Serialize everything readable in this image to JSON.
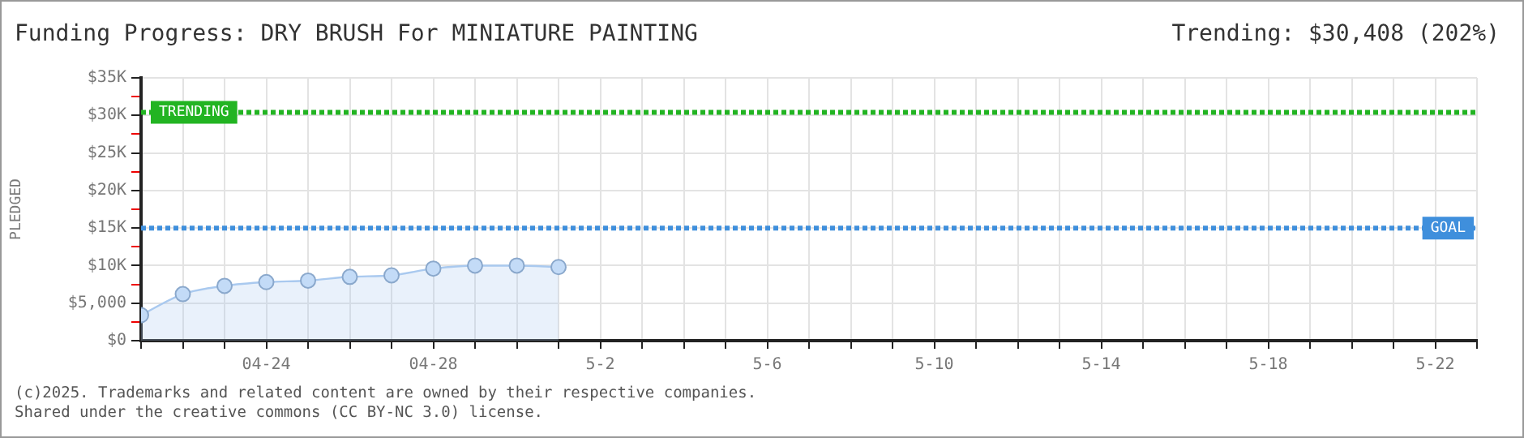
{
  "chart_data": {
    "type": "area",
    "title": "Funding Progress: DRY BRUSH For MINIATURE PAINTING",
    "subtitle": "Trending: $30,408 (202%)",
    "ylabel": "PLEDGED",
    "x": [
      "2025-04-21",
      "2025-04-22",
      "2025-04-23",
      "2025-04-24",
      "2025-04-25",
      "2025-04-26",
      "2025-04-27",
      "2025-04-28",
      "2025-04-29",
      "2025-04-30",
      "2025-05-01"
    ],
    "series": [
      {
        "color": "#a9c9ef",
        "values": [
          3400,
          6200,
          7300,
          7800,
          8000,
          8500,
          8700,
          9600,
          10000,
          10000,
          9800
        ]
      }
    ],
    "xlim": [
      "2025-04-21",
      "2025-05-23"
    ],
    "xticks": [
      {
        "value": "2025-04-21",
        "label": null
      },
      {
        "value": "2025-04-22",
        "label": null
      },
      {
        "value": "2025-04-23",
        "label": null
      },
      {
        "value": "2025-04-24",
        "label": "04-24"
      },
      {
        "value": "2025-04-25",
        "label": null
      },
      {
        "value": "2025-04-26",
        "label": null
      },
      {
        "value": "2025-04-27",
        "label": null
      },
      {
        "value": "2025-04-28",
        "label": "04-28"
      },
      {
        "value": "2025-04-29",
        "label": null
      },
      {
        "value": "2025-04-30",
        "label": null
      },
      {
        "value": "2025-05-01",
        "label": null
      },
      {
        "value": "2025-05-02",
        "label": "5-2"
      },
      {
        "value": "2025-05-03",
        "label": null
      },
      {
        "value": "2025-05-04",
        "label": null
      },
      {
        "value": "2025-05-05",
        "label": null
      },
      {
        "value": "2025-05-06",
        "label": "5-6"
      },
      {
        "value": "2025-05-07",
        "label": null
      },
      {
        "value": "2025-05-08",
        "label": null
      },
      {
        "value": "2025-05-09",
        "label": null
      },
      {
        "value": "2025-05-10",
        "label": "5-10"
      },
      {
        "value": "2025-05-11",
        "label": null
      },
      {
        "value": "2025-05-12",
        "label": null
      },
      {
        "value": "2025-05-13",
        "label": null
      },
      {
        "value": "2025-05-14",
        "label": "5-14"
      },
      {
        "value": "2025-05-15",
        "label": null
      },
      {
        "value": "2025-05-16",
        "label": null
      },
      {
        "value": "2025-05-17",
        "label": null
      },
      {
        "value": "2025-05-18",
        "label": "5-18"
      },
      {
        "value": "2025-05-19",
        "label": null
      },
      {
        "value": "2025-05-20",
        "label": null
      },
      {
        "value": "2025-05-21",
        "label": null
      },
      {
        "value": "2025-05-22",
        "label": "5-22"
      },
      {
        "value": "2025-05-23",
        "label": null
      }
    ],
    "ylim": [
      0,
      35000
    ],
    "yticks": [
      {
        "value": 0,
        "label": "$0"
      },
      {
        "value": 2500,
        "label": null
      },
      {
        "value": 5000,
        "label": "$5,000"
      },
      {
        "value": 7500,
        "label": null
      },
      {
        "value": 10000,
        "label": "$10K"
      },
      {
        "value": 12500,
        "label": null
      },
      {
        "value": 15000,
        "label": "$15K"
      },
      {
        "value": 17500,
        "label": null
      },
      {
        "value": 20000,
        "label": "$20K"
      },
      {
        "value": 22500,
        "label": null
      },
      {
        "value": 25000,
        "label": "$25K"
      },
      {
        "value": 27500,
        "label": null
      },
      {
        "value": 30000,
        "label": "$30K"
      },
      {
        "value": 32500,
        "label": null
      },
      {
        "value": 35000,
        "label": "$35K"
      }
    ],
    "ref_lines": [
      {
        "axis": "y",
        "value": 30408,
        "label": "TRENDING",
        "color": "#22b422",
        "line_style": "dotted"
      },
      {
        "axis": "y",
        "value": 15000,
        "label": "GOAL",
        "color": "#3f8fdc",
        "line_style": "dotted"
      }
    ],
    "grid": true,
    "legend": false,
    "marker": "circle",
    "line_style": "solid",
    "annotations": [
      "(c)2025. Trademarks and related content are owned by their respective companies.",
      "Shared under the creative commons (CC BY-NC 3.0) license."
    ]
  }
}
